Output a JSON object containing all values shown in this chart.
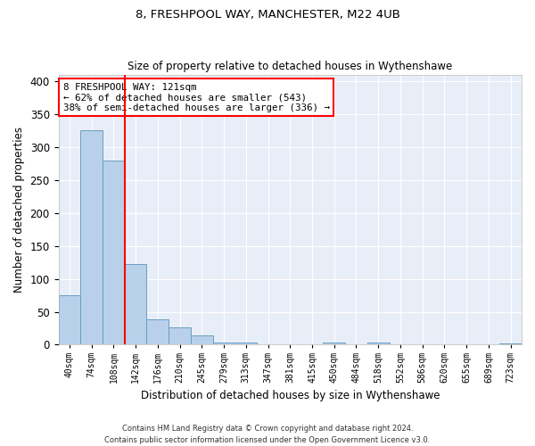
{
  "title1": "8, FRESHPOOL WAY, MANCHESTER, M22 4UB",
  "title2": "Size of property relative to detached houses in Wythenshawe",
  "xlabel": "Distribution of detached houses by size in Wythenshawe",
  "ylabel": "Number of detached properties",
  "categories": [
    "40sqm",
    "74sqm",
    "108sqm",
    "142sqm",
    "176sqm",
    "210sqm",
    "245sqm",
    "279sqm",
    "313sqm",
    "347sqm",
    "381sqm",
    "415sqm",
    "450sqm",
    "484sqm",
    "518sqm",
    "552sqm",
    "586sqm",
    "620sqm",
    "655sqm",
    "689sqm",
    "723sqm"
  ],
  "values": [
    75,
    325,
    280,
    122,
    38,
    26,
    14,
    4,
    3,
    0,
    0,
    0,
    4,
    0,
    4,
    0,
    0,
    0,
    0,
    0,
    2
  ],
  "bar_color": "#b8d0ea",
  "bar_edge_color": "#6a9ec0",
  "vline_color": "red",
  "vline_x_index": 2,
  "annotation_text": "8 FRESHPOOL WAY: 121sqm\n← 62% of detached houses are smaller (543)\n38% of semi-detached houses are larger (336) →",
  "annotation_box_color": "white",
  "annotation_box_edge": "red",
  "bg_color": "#e8eef8",
  "footer": "Contains HM Land Registry data © Crown copyright and database right 2024.\nContains public sector information licensed under the Open Government Licence v3.0.",
  "ylim": [
    0,
    410
  ],
  "yticks": [
    0,
    50,
    100,
    150,
    200,
    250,
    300,
    350,
    400
  ],
  "figsize": [
    6.0,
    5.0
  ],
  "dpi": 100
}
